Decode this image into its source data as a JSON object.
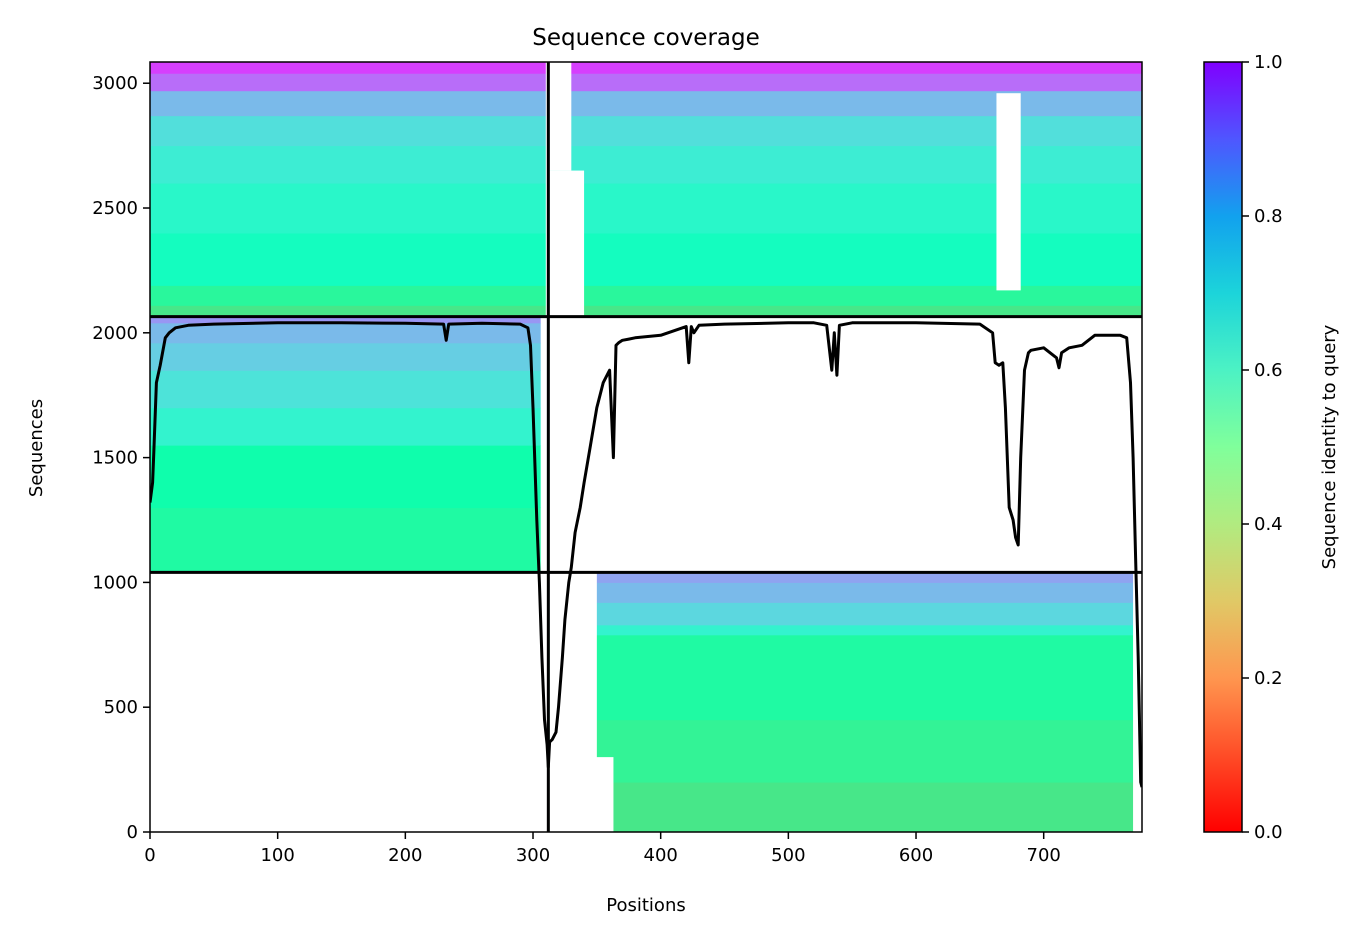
{
  "chart_data": {
    "type": "heatmap",
    "title": "Sequence coverage",
    "xlabel": "Positions",
    "ylabel": "Sequences",
    "colorbar_label": "Sequence identity to query",
    "xlim": [
      0,
      777
    ],
    "ylim": [
      0,
      3085
    ],
    "xticks": [
      0,
      100,
      200,
      300,
      400,
      500,
      600,
      700
    ],
    "yticks": [
      0,
      500,
      1000,
      1500,
      2000,
      2500,
      3000
    ],
    "colorbar_ticks": [
      0.0,
      0.2,
      0.4,
      0.6,
      0.8,
      1.0
    ],
    "colorbar_tick_labels": [
      "0.0",
      "0.2",
      "0.4",
      "0.6",
      "0.8",
      "1.0"
    ],
    "colormap": "rainbow_r",
    "chain_boundary_x": 312,
    "block_boundaries_y": [
      1040,
      2065
    ],
    "blocks": [
      {
        "name": "both_chains",
        "x": [
          0,
          777
        ],
        "y": [
          2065,
          3085
        ],
        "bands": [
          {
            "y": [
              2065,
              2110
            ],
            "identity": 0.36
          },
          {
            "y": [
              2110,
              2190
            ],
            "identity": 0.42
          },
          {
            "y": [
              2190,
              2400
            ],
            "identity": 0.54
          },
          {
            "y": [
              2400,
              2600
            ],
            "identity": 0.58
          },
          {
            "y": [
              2600,
              2750
            ],
            "identity": 0.62
          },
          {
            "y": [
              2750,
              2870
            ],
            "identity": 0.66
          },
          {
            "y": [
              2870,
              2970
            ],
            "identity": 0.74
          },
          {
            "y": [
              2970,
              3040
            ],
            "identity": 0.86
          },
          {
            "y": [
              3040,
              3085
            ],
            "identity": 0.92
          }
        ]
      },
      {
        "name": "chain_A_only",
        "x": [
          0,
          306
        ],
        "y": [
          1040,
          2065
        ],
        "bands": [
          {
            "y": [
              1040,
              1300
            ],
            "identity": 0.44
          },
          {
            "y": [
              1300,
              1550
            ],
            "identity": 0.47
          },
          {
            "y": [
              1550,
              1700
            ],
            "identity": 0.6
          },
          {
            "y": [
              1700,
              1850
            ],
            "identity": 0.65
          },
          {
            "y": [
              1850,
              1960
            ],
            "identity": 0.7
          },
          {
            "y": [
              1960,
              2040
            ],
            "identity": 0.74
          },
          {
            "y": [
              2040,
              2065
            ],
            "identity": 0.8
          }
        ]
      },
      {
        "name": "chain_B_only",
        "x": [
          312,
          777
        ],
        "y": [
          0,
          1040
        ],
        "bands": [
          {
            "y": [
              0,
              200
            ],
            "identity": 0.36
          },
          {
            "y": [
              200,
              450
            ],
            "identity": 0.4
          },
          {
            "y": [
              450,
              790
            ],
            "identity": 0.44
          },
          {
            "y": [
              790,
              830
            ],
            "identity": 0.6
          },
          {
            "y": [
              830,
              920
            ],
            "identity": 0.68
          },
          {
            "y": [
              920,
              1000
            ],
            "identity": 0.74
          },
          {
            "y": [
              1000,
              1040
            ],
            "identity": 0.78
          }
        ]
      }
    ],
    "gaps": [
      {
        "x": [
          310,
          313
        ],
        "y": [
          2065,
          3085
        ]
      },
      {
        "x": [
          313,
          340
        ],
        "y": [
          2065,
          2650
        ]
      },
      {
        "x": [
          313,
          330
        ],
        "y": [
          2650,
          3085
        ]
      },
      {
        "x": [
          663,
          682
        ],
        "y": [
          2170,
          2960
        ]
      },
      {
        "x": [
          313,
          350
        ],
        "y": [
          0,
          1040
        ]
      },
      {
        "x": [
          313,
          363
        ],
        "y": [
          0,
          300
        ]
      },
      {
        "x": [
          770,
          777
        ],
        "y": [
          0,
          1040
        ]
      }
    ],
    "coverage_line": {
      "x": [
        0,
        2,
        3,
        5,
        8,
        12,
        15,
        20,
        30,
        50,
        100,
        150,
        200,
        230,
        232,
        234,
        260,
        290,
        296,
        298,
        300,
        303,
        305,
        307,
        309,
        311,
        312,
        313,
        315,
        318,
        320,
        323,
        325,
        328,
        330,
        333,
        337,
        340,
        345,
        350,
        355,
        360,
        363,
        365,
        367,
        370,
        375,
        380,
        400,
        420,
        422,
        424,
        426,
        430,
        450,
        500,
        520,
        530,
        534,
        536,
        538,
        540,
        550,
        600,
        650,
        660,
        662,
        665,
        668,
        670,
        673,
        676,
        678,
        680,
        682,
        685,
        688,
        690,
        700,
        710,
        712,
        714,
        720,
        730,
        740,
        760,
        765,
        768,
        770,
        772,
        774,
        776,
        777
      ],
      "y": [
        1320,
        1400,
        1520,
        1800,
        1870,
        1980,
        2000,
        2020,
        2030,
        2035,
        2040,
        2040,
        2038,
        2035,
        1970,
        2035,
        2038,
        2035,
        2020,
        1950,
        1700,
        1250,
        1000,
        700,
        450,
        350,
        260,
        360,
        370,
        400,
        500,
        700,
        850,
        1000,
        1060,
        1200,
        1300,
        1400,
        1550,
        1700,
        1800,
        1850,
        1500,
        1950,
        1960,
        1970,
        1975,
        1980,
        1990,
        2025,
        1880,
        2025,
        2000,
        2030,
        2035,
        2040,
        2040,
        2030,
        1850,
        2000,
        1830,
        2030,
        2040,
        2040,
        2035,
        2000,
        1880,
        1870,
        1880,
        1700,
        1300,
        1250,
        1180,
        1150,
        1500,
        1850,
        1920,
        1930,
        1940,
        1900,
        1860,
        1920,
        1940,
        1950,
        1990,
        1990,
        1980,
        1800,
        1500,
        1100,
        700,
        200,
        180
      ]
    }
  }
}
